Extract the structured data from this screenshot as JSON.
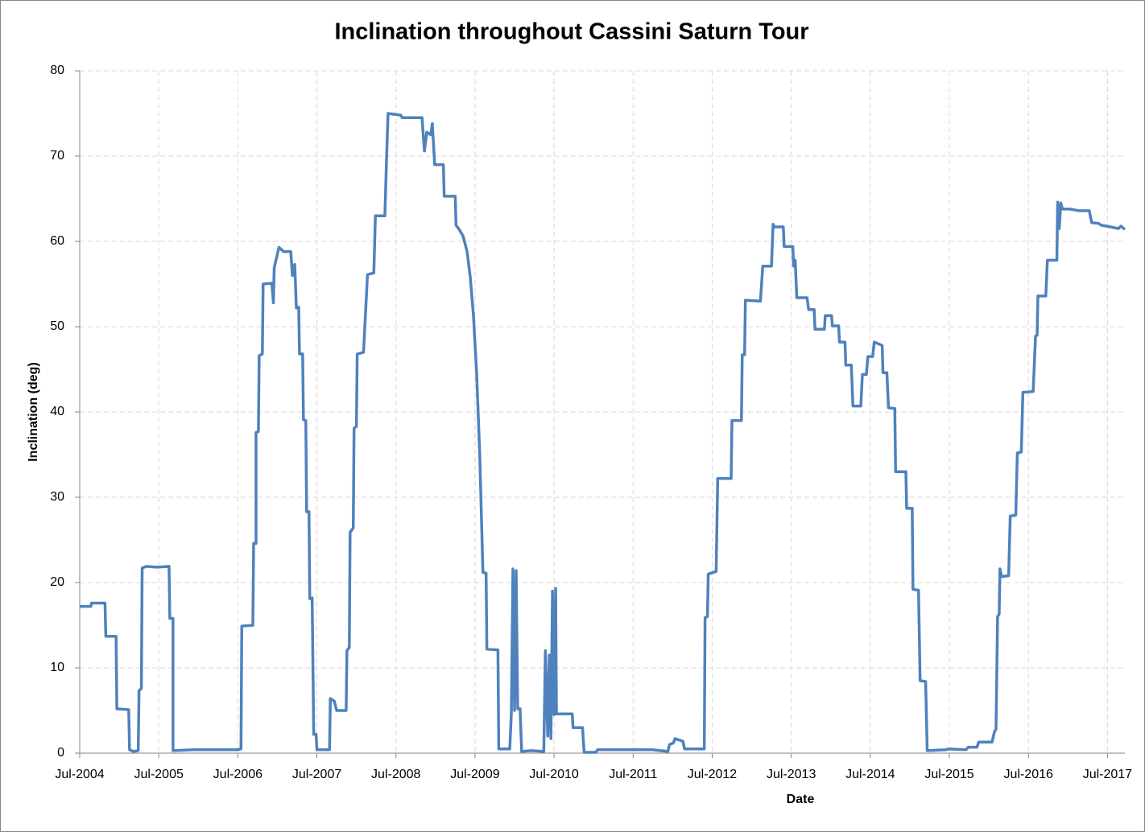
{
  "chart_data": {
    "type": "line",
    "title": "Inclination throughout Cassini Saturn Tour",
    "x_label": "Date",
    "y_label": "Inclination (deg)",
    "color": "#4f81bd",
    "grid": true,
    "xlim": [
      2004.5,
      2017.72
    ],
    "xticks": [
      {
        "value": 2004.5,
        "label": "Jul-2004"
      },
      {
        "value": 2005.5,
        "label": "Jul-2005"
      },
      {
        "value": 2006.5,
        "label": "Jul-2006"
      },
      {
        "value": 2007.5,
        "label": "Jul-2007"
      },
      {
        "value": 2008.5,
        "label": "Jul-2008"
      },
      {
        "value": 2009.5,
        "label": "Jul-2009"
      },
      {
        "value": 2010.5,
        "label": "Jul-2010"
      },
      {
        "value": 2011.5,
        "label": "Jul-2011"
      },
      {
        "value": 2012.5,
        "label": "Jul-2012"
      },
      {
        "value": 2013.5,
        "label": "Jul-2013"
      },
      {
        "value": 2014.5,
        "label": "Jul-2014"
      },
      {
        "value": 2015.5,
        "label": "Jul-2015"
      },
      {
        "value": 2016.5,
        "label": "Jul-2016"
      },
      {
        "value": 2017.5,
        "label": "Jul-2017"
      }
    ],
    "ylim": [
      0,
      80
    ],
    "yticks": [
      0,
      10,
      20,
      30,
      40,
      50,
      60,
      70,
      80
    ],
    "x": [
      2004.5,
      2004.64,
      2004.65,
      2004.82,
      2004.83,
      2004.96,
      2004.97,
      2005.12,
      2005.13,
      2005.18,
      2005.24,
      2005.25,
      2005.28,
      2005.29,
      2005.34,
      2005.48,
      2005.63,
      2005.64,
      2005.68,
      2005.68,
      2005.94,
      2006.5,
      2006.54,
      2006.55,
      2006.69,
      2006.7,
      2006.73,
      2006.73,
      2006.76,
      2006.77,
      2006.81,
      2006.82,
      2006.93,
      2006.95,
      2006.96,
      2007.02,
      2007.08,
      2007.17,
      2007.19,
      2007.22,
      2007.24,
      2007.27,
      2007.28,
      2007.32,
      2007.33,
      2007.36,
      2007.37,
      2007.4,
      2007.41,
      2007.44,
      2007.46,
      2007.49,
      2007.5,
      2007.66,
      2007.67,
      2007.72,
      2007.75,
      2007.87,
      2007.88,
      2007.91,
      2007.92,
      2007.96,
      2007.97,
      2008.0,
      2008.01,
      2008.09,
      2008.14,
      2008.22,
      2008.24,
      2008.36,
      2008.38,
      2008.4,
      2008.56,
      2008.58,
      2008.83,
      2008.86,
      2008.89,
      2008.94,
      2008.96,
      2008.99,
      2009.1,
      2009.11,
      2009.25,
      2009.26,
      2009.3,
      2009.35,
      2009.4,
      2009.44,
      2009.48,
      2009.52,
      2009.56,
      2009.6,
      2009.64,
      2009.65,
      2009.79,
      2009.8,
      2009.94,
      2009.96,
      2009.98,
      2010.0,
      2010.02,
      2010.04,
      2010.07,
      2010.09,
      2010.21,
      2010.37,
      2010.39,
      2010.42,
      2010.44,
      2010.46,
      2010.48,
      2010.5,
      2010.52,
      2010.53,
      2010.73,
      2010.74,
      2010.86,
      2010.88,
      2011.03,
      2011.05,
      2011.74,
      2011.94,
      2011.96,
      2012.01,
      2012.03,
      2012.13,
      2012.15,
      2012.4,
      2012.41,
      2012.44,
      2012.45,
      2012.55,
      2012.57,
      2012.74,
      2012.75,
      2012.87,
      2012.88,
      2012.91,
      2012.92,
      2013.11,
      2013.14,
      2013.25,
      2013.27,
      2013.29,
      2013.4,
      2013.41,
      2013.52,
      2013.53,
      2013.55,
      2013.57,
      2013.7,
      2013.72,
      2013.79,
      2013.8,
      2013.92,
      2013.93,
      2014.01,
      2014.02,
      2014.1,
      2014.11,
      2014.18,
      2014.19,
      2014.26,
      2014.28,
      2014.38,
      2014.4,
      2014.45,
      2014.47,
      2014.53,
      2014.55,
      2014.65,
      2014.66,
      2014.71,
      2014.73,
      2014.81,
      2014.82,
      2014.95,
      2014.96,
      2015.03,
      2015.04,
      2015.11,
      2015.13,
      2015.2,
      2015.22,
      2015.46,
      2015.49,
      2015.71,
      2015.74,
      2015.85,
      2015.87,
      2016.04,
      2016.07,
      2016.09,
      2016.11,
      2016.13,
      2016.14,
      2016.16,
      2016.25,
      2016.27,
      2016.34,
      2016.36,
      2016.41,
      2016.43,
      2016.56,
      2016.59,
      2016.61,
      2016.62,
      2016.72,
      2016.74,
      2016.86,
      2016.87,
      2016.89,
      2016.91,
      2016.93,
      2017.02,
      2017.14,
      2017.27,
      2017.3,
      2017.39,
      2017.42,
      2017.54,
      2017.64,
      2017.67,
      2017.72
    ],
    "values": [
      17.2,
      17.2,
      17.6,
      17.6,
      13.7,
      13.7,
      5.2,
      5.1,
      0.4,
      0.2,
      0.3,
      7.3,
      7.6,
      21.7,
      21.9,
      21.8,
      21.9,
      15.8,
      15.8,
      0.3,
      0.4,
      0.4,
      0.5,
      14.9,
      15.0,
      24.6,
      24.6,
      37.6,
      37.7,
      46.6,
      46.8,
      55.0,
      55.1,
      52.8,
      56.9,
      59.3,
      58.8,
      58.8,
      56.0,
      57.3,
      52.2,
      52.3,
      46.8,
      46.8,
      39.1,
      39.0,
      28.3,
      28.3,
      18.1,
      18.2,
      2.2,
      2.2,
      0.4,
      0.4,
      6.4,
      6.1,
      5.0,
      5.0,
      12.0,
      12.4,
      25.9,
      26.4,
      38.1,
      38.3,
      46.8,
      47.0,
      56.1,
      56.3,
      63.0,
      63.0,
      69.4,
      75.0,
      74.8,
      74.5,
      74.5,
      70.6,
      72.8,
      72.5,
      73.8,
      69.0,
      69.0,
      65.3,
      65.3,
      61.9,
      61.4,
      60.6,
      58.8,
      55.8,
      51.3,
      44.7,
      35.0,
      21.2,
      21.1,
      12.2,
      12.1,
      0.5,
      0.5,
      4.8,
      21.6,
      5.0,
      21.4,
      5.2,
      5.2,
      0.2,
      0.3,
      0.2,
      12.0,
      2.0,
      11.5,
      1.7,
      19.0,
      4.5,
      19.3,
      4.6,
      4.6,
      3.0,
      3.0,
      0.1,
      0.1,
      0.4,
      0.4,
      0.2,
      1.0,
      1.2,
      1.7,
      1.4,
      0.5,
      0.5,
      15.9,
      16.0,
      21.0,
      21.3,
      32.2,
      32.2,
      39.0,
      39.0,
      46.7,
      46.7,
      53.1,
      53.0,
      57.1,
      57.1,
      62.0,
      61.7,
      61.7,
      59.4,
      59.4,
      57.1,
      57.8,
      53.4,
      53.4,
      52.0,
      52.0,
      49.7,
      49.7,
      51.3,
      51.3,
      50.1,
      50.1,
      48.2,
      48.2,
      45.5,
      45.5,
      40.7,
      40.7,
      44.4,
      44.4,
      46.5,
      46.5,
      48.2,
      47.8,
      44.6,
      44.6,
      40.5,
      40.4,
      33.0,
      33.0,
      28.7,
      28.7,
      19.2,
      19.1,
      8.5,
      8.4,
      0.3,
      0.4,
      0.5,
      0.4,
      0.7,
      0.7,
      1.3,
      1.3,
      2.5,
      2.8,
      16.0,
      16.3,
      21.6,
      20.7,
      20.8,
      27.8,
      27.9,
      35.2,
      35.3,
      42.3,
      42.4,
      48.9,
      49.0,
      53.6,
      53.6,
      57.8,
      57.8,
      64.6,
      61.5,
      64.5,
      63.8,
      63.8,
      63.6,
      63.6,
      62.2,
      62.1,
      61.9,
      61.7,
      61.5,
      61.8,
      61.4
    ]
  }
}
